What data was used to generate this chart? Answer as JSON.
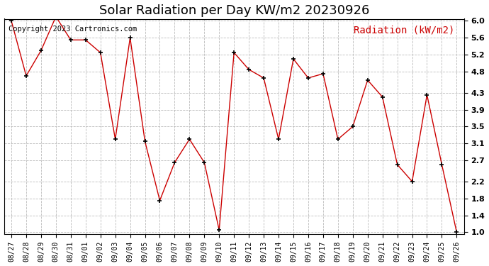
{
  "title": "Solar Radiation per Day KW/m2 20230926",
  "copyright_text": "Copyright 2023 Cartronics.com",
  "legend_label": "Radiation (kW/m2)",
  "dates": [
    "08/27",
    "08/28",
    "08/29",
    "08/30",
    "08/31",
    "09/01",
    "09/02",
    "09/03",
    "09/04",
    "09/05",
    "09/06",
    "09/07",
    "09/08",
    "09/09",
    "09/10",
    "09/11",
    "09/12",
    "09/13",
    "09/14",
    "09/15",
    "09/16",
    "09/17",
    "09/18",
    "09/19",
    "09/20",
    "09/21",
    "09/22",
    "09/23",
    "09/24",
    "09/25",
    "09/26"
  ],
  "values": [
    6.0,
    4.7,
    5.3,
    6.1,
    5.55,
    5.55,
    5.25,
    3.2,
    5.6,
    3.15,
    1.75,
    2.65,
    3.2,
    2.65,
    1.05,
    5.25,
    4.85,
    4.65,
    3.2,
    5.1,
    4.65,
    4.75,
    3.2,
    3.5,
    4.6,
    4.2,
    2.6,
    2.2,
    4.25,
    2.6,
    1.0
  ],
  "ylim_min": 1.0,
  "ylim_max": 6.0,
  "yticks": [
    1.0,
    1.4,
    1.8,
    2.2,
    2.7,
    3.1,
    3.5,
    3.9,
    4.3,
    4.8,
    5.2,
    5.6,
    6.0
  ],
  "line_color": "#cc0000",
  "marker_color": "black",
  "bg_color": "white",
  "grid_color": "#bbbbbb",
  "title_fontsize": 13,
  "copyright_fontsize": 7.5,
  "legend_fontsize": 10,
  "tick_fontsize": 8,
  "xtick_fontsize": 7
}
